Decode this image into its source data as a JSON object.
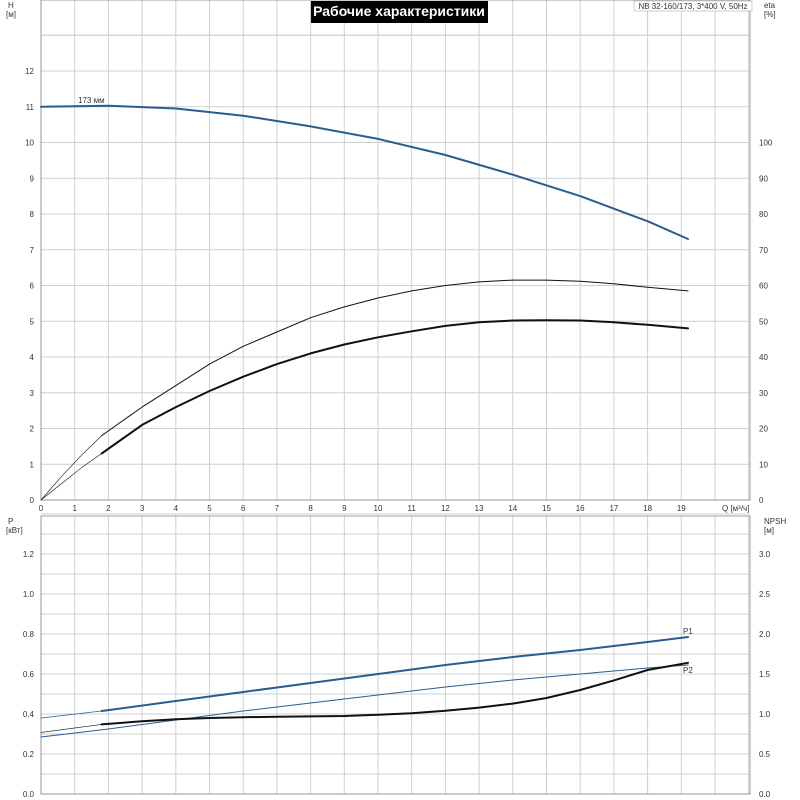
{
  "header": {
    "title": "Рабочие характеристики",
    "model": "NB 32-160/173, 3*400 V, 50Hz"
  },
  "colors": {
    "blue": "#2a5d8f",
    "black": "#111111",
    "grid": "#cfcfcf",
    "title_bg": "#000000"
  },
  "chart_data": [
    {
      "type": "line",
      "name": "top-panel",
      "xlabel": "Q [м³/ч]",
      "xlim": [
        0,
        20
      ],
      "x_ticks": [
        "0",
        "1",
        "2",
        "3",
        "4",
        "5",
        "6",
        "7",
        "8",
        "9",
        "10",
        "11",
        "12",
        "13",
        "14",
        "15",
        "16",
        "17",
        "18",
        "19"
      ],
      "left_axis": {
        "label_line1": "H",
        "label_line2": "[м]",
        "ylim": [
          0,
          14
        ],
        "ticks": [
          "0",
          "1",
          "2",
          "3",
          "4",
          "5",
          "6",
          "7",
          "8",
          "9",
          "10",
          "11",
          "12"
        ]
      },
      "right_axis": {
        "label_line1": "eta",
        "label_line2": "[%]",
        "ylim": [
          0,
          140
        ],
        "ticks": [
          "0",
          "10",
          "20",
          "30",
          "40",
          "50",
          "60",
          "70",
          "80",
          "90",
          "100"
        ]
      },
      "curve_label": "173 мм",
      "series": [
        {
          "key": "H",
          "axis": "left",
          "color": "blue",
          "width": 2,
          "x": [
            0,
            2,
            4,
            6,
            8,
            10,
            12,
            14,
            16,
            18,
            19.2
          ],
          "y": [
            11.0,
            11.03,
            10.95,
            10.75,
            10.45,
            10.1,
            9.65,
            9.1,
            8.5,
            7.8,
            7.3
          ]
        },
        {
          "key": "eta_thin_extrap",
          "axis": "right",
          "color": "black",
          "width": 0.6,
          "x": [
            0,
            0.6,
            1.2,
            1.8
          ],
          "y": [
            0,
            6.5,
            12.5,
            18
          ]
        },
        {
          "key": "eta_thin",
          "axis": "right",
          "color": "black",
          "width": 1,
          "x": [
            1.8,
            3,
            4,
            5,
            6,
            7,
            8,
            9,
            10,
            11,
            12,
            13,
            14,
            15,
            16,
            17,
            18,
            19.2
          ],
          "y": [
            18,
            26,
            32,
            38,
            43,
            47,
            51,
            54,
            56.5,
            58.5,
            60,
            61,
            61.5,
            61.5,
            61.2,
            60.5,
            59.5,
            58.5
          ]
        },
        {
          "key": "eta_thick_extrap",
          "axis": "right",
          "color": "black",
          "width": 0.6,
          "x": [
            0,
            0.6,
            1.2,
            1.8
          ],
          "y": [
            0,
            4.5,
            9,
            13
          ]
        },
        {
          "key": "eta_thick",
          "axis": "right",
          "color": "black",
          "width": 2,
          "x": [
            1.8,
            3,
            4,
            5,
            6,
            7,
            8,
            9,
            10,
            11,
            12,
            13,
            14,
            15,
            16,
            17,
            18,
            19.2
          ],
          "y": [
            13,
            21,
            26,
            30.5,
            34.5,
            38,
            41,
            43.5,
            45.5,
            47.2,
            48.7,
            49.7,
            50.2,
            50.3,
            50.2,
            49.7,
            49,
            48
          ]
        }
      ]
    },
    {
      "type": "line",
      "name": "bottom-panel",
      "xlim": [
        0,
        20
      ],
      "left_axis": {
        "label_line1": "P",
        "label_line2": "[кВт]",
        "ylim": [
          0,
          1.4
        ],
        "ticks": [
          "0.0",
          "0.2",
          "0.4",
          "0.6",
          "0.8",
          "1.0",
          "1.2"
        ]
      },
      "right_axis": {
        "label_line1": "NPSH",
        "label_line2": "[м]",
        "ylim": [
          0,
          3.5
        ],
        "ticks": [
          "0.0",
          "0.5",
          "1.0",
          "1.5",
          "2.0",
          "2.5",
          "3.0"
        ]
      },
      "series": [
        {
          "key": "P1_extrap",
          "axis": "left",
          "color": "blue",
          "width": 0.8,
          "x": [
            0,
            1.8
          ],
          "y": [
            0.38,
            0.415
          ]
        },
        {
          "key": "P1",
          "axis": "left",
          "color": "blue",
          "width": 2,
          "label": "P1",
          "x": [
            1.8,
            4,
            6,
            8,
            10,
            12,
            14,
            16,
            18,
            19.2
          ],
          "y": [
            0.415,
            0.465,
            0.51,
            0.555,
            0.6,
            0.645,
            0.685,
            0.72,
            0.76,
            0.785
          ]
        },
        {
          "key": "P2",
          "axis": "left",
          "color": "blue",
          "width": 1,
          "label": "P2",
          "x": [
            0,
            2,
            4,
            6,
            8,
            10,
            12,
            14,
            16,
            18,
            19.2
          ],
          "y": [
            0.285,
            0.325,
            0.37,
            0.415,
            0.455,
            0.495,
            0.535,
            0.57,
            0.6,
            0.63,
            0.645
          ]
        },
        {
          "key": "NPSH_extrap",
          "axis": "right",
          "color": "black",
          "width": 0.6,
          "x": [
            0,
            1.8
          ],
          "y": [
            0.77,
            0.87
          ]
        },
        {
          "key": "NPSH",
          "axis": "right",
          "color": "black",
          "width": 2,
          "x": [
            1.8,
            3,
            4,
            5,
            6,
            7,
            8,
            9,
            10,
            11,
            12,
            13,
            14,
            15,
            16,
            17,
            18,
            19.2
          ],
          "y": [
            0.87,
            0.91,
            0.935,
            0.95,
            0.96,
            0.965,
            0.97,
            0.975,
            0.99,
            1.01,
            1.04,
            1.08,
            1.13,
            1.2,
            1.3,
            1.42,
            1.55,
            1.64
          ]
        }
      ]
    }
  ]
}
